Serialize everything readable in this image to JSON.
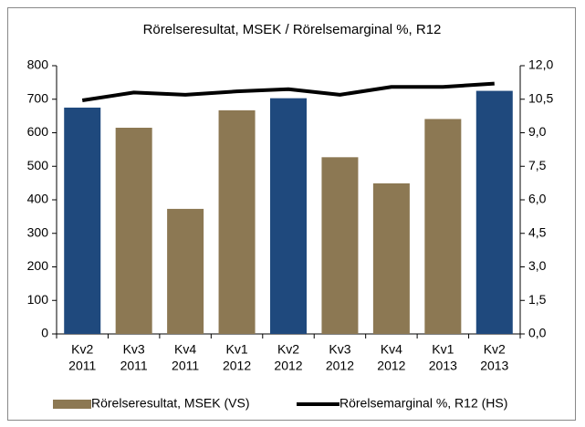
{
  "chart_data": {
    "type": "bar_line",
    "title": "Rörelseresultat, MSEK / Rörelsemarginal %, R12",
    "categories": [
      [
        "Kv2",
        "2011"
      ],
      [
        "Kv3",
        "2011"
      ],
      [
        "Kv4",
        "2011"
      ],
      [
        "Kv1",
        "2012"
      ],
      [
        "Kv2",
        "2012"
      ],
      [
        "Kv3",
        "2012"
      ],
      [
        "Kv4",
        "2012"
      ],
      [
        "Kv1",
        "2013"
      ],
      [
        "Kv2",
        "2013"
      ]
    ],
    "series": [
      {
        "name": "Rörelseresultat, MSEK (VS)",
        "type": "bar",
        "color": "#8c7853",
        "colors": [
          "#1f497d",
          "#8c7853",
          "#8c7853",
          "#8c7853",
          "#1f497d",
          "#8c7853",
          "#8c7853",
          "#8c7853",
          "#1f497d"
        ],
        "values": [
          675,
          615,
          373,
          667,
          703,
          527,
          449,
          641,
          725
        ]
      },
      {
        "name": "Rörelsemarginal %, R12 (HS)",
        "type": "line",
        "axis": "y2",
        "color": "#000000",
        "values": [
          10.45,
          10.8,
          10.7,
          10.85,
          10.95,
          10.7,
          11.05,
          11.05,
          11.2
        ]
      }
    ],
    "ylim": [
      0,
      800
    ],
    "yticks": [
      0,
      100,
      200,
      300,
      400,
      500,
      600,
      700,
      800
    ],
    "y2lim": [
      0,
      12
    ],
    "y2ticks": [
      {
        "value": 0,
        "label": "0,0"
      },
      {
        "value": 1.5,
        "label": "1,5"
      },
      {
        "value": 3,
        "label": "3,0"
      },
      {
        "value": 4.5,
        "label": "4,5"
      },
      {
        "value": 6,
        "label": "6,0"
      },
      {
        "value": 7.5,
        "label": "7,5"
      },
      {
        "value": 9,
        "label": "9,0"
      },
      {
        "value": 10.5,
        "label": "10,5"
      },
      {
        "value": 12,
        "label": "12,0"
      }
    ],
    "legend": "bottom"
  }
}
